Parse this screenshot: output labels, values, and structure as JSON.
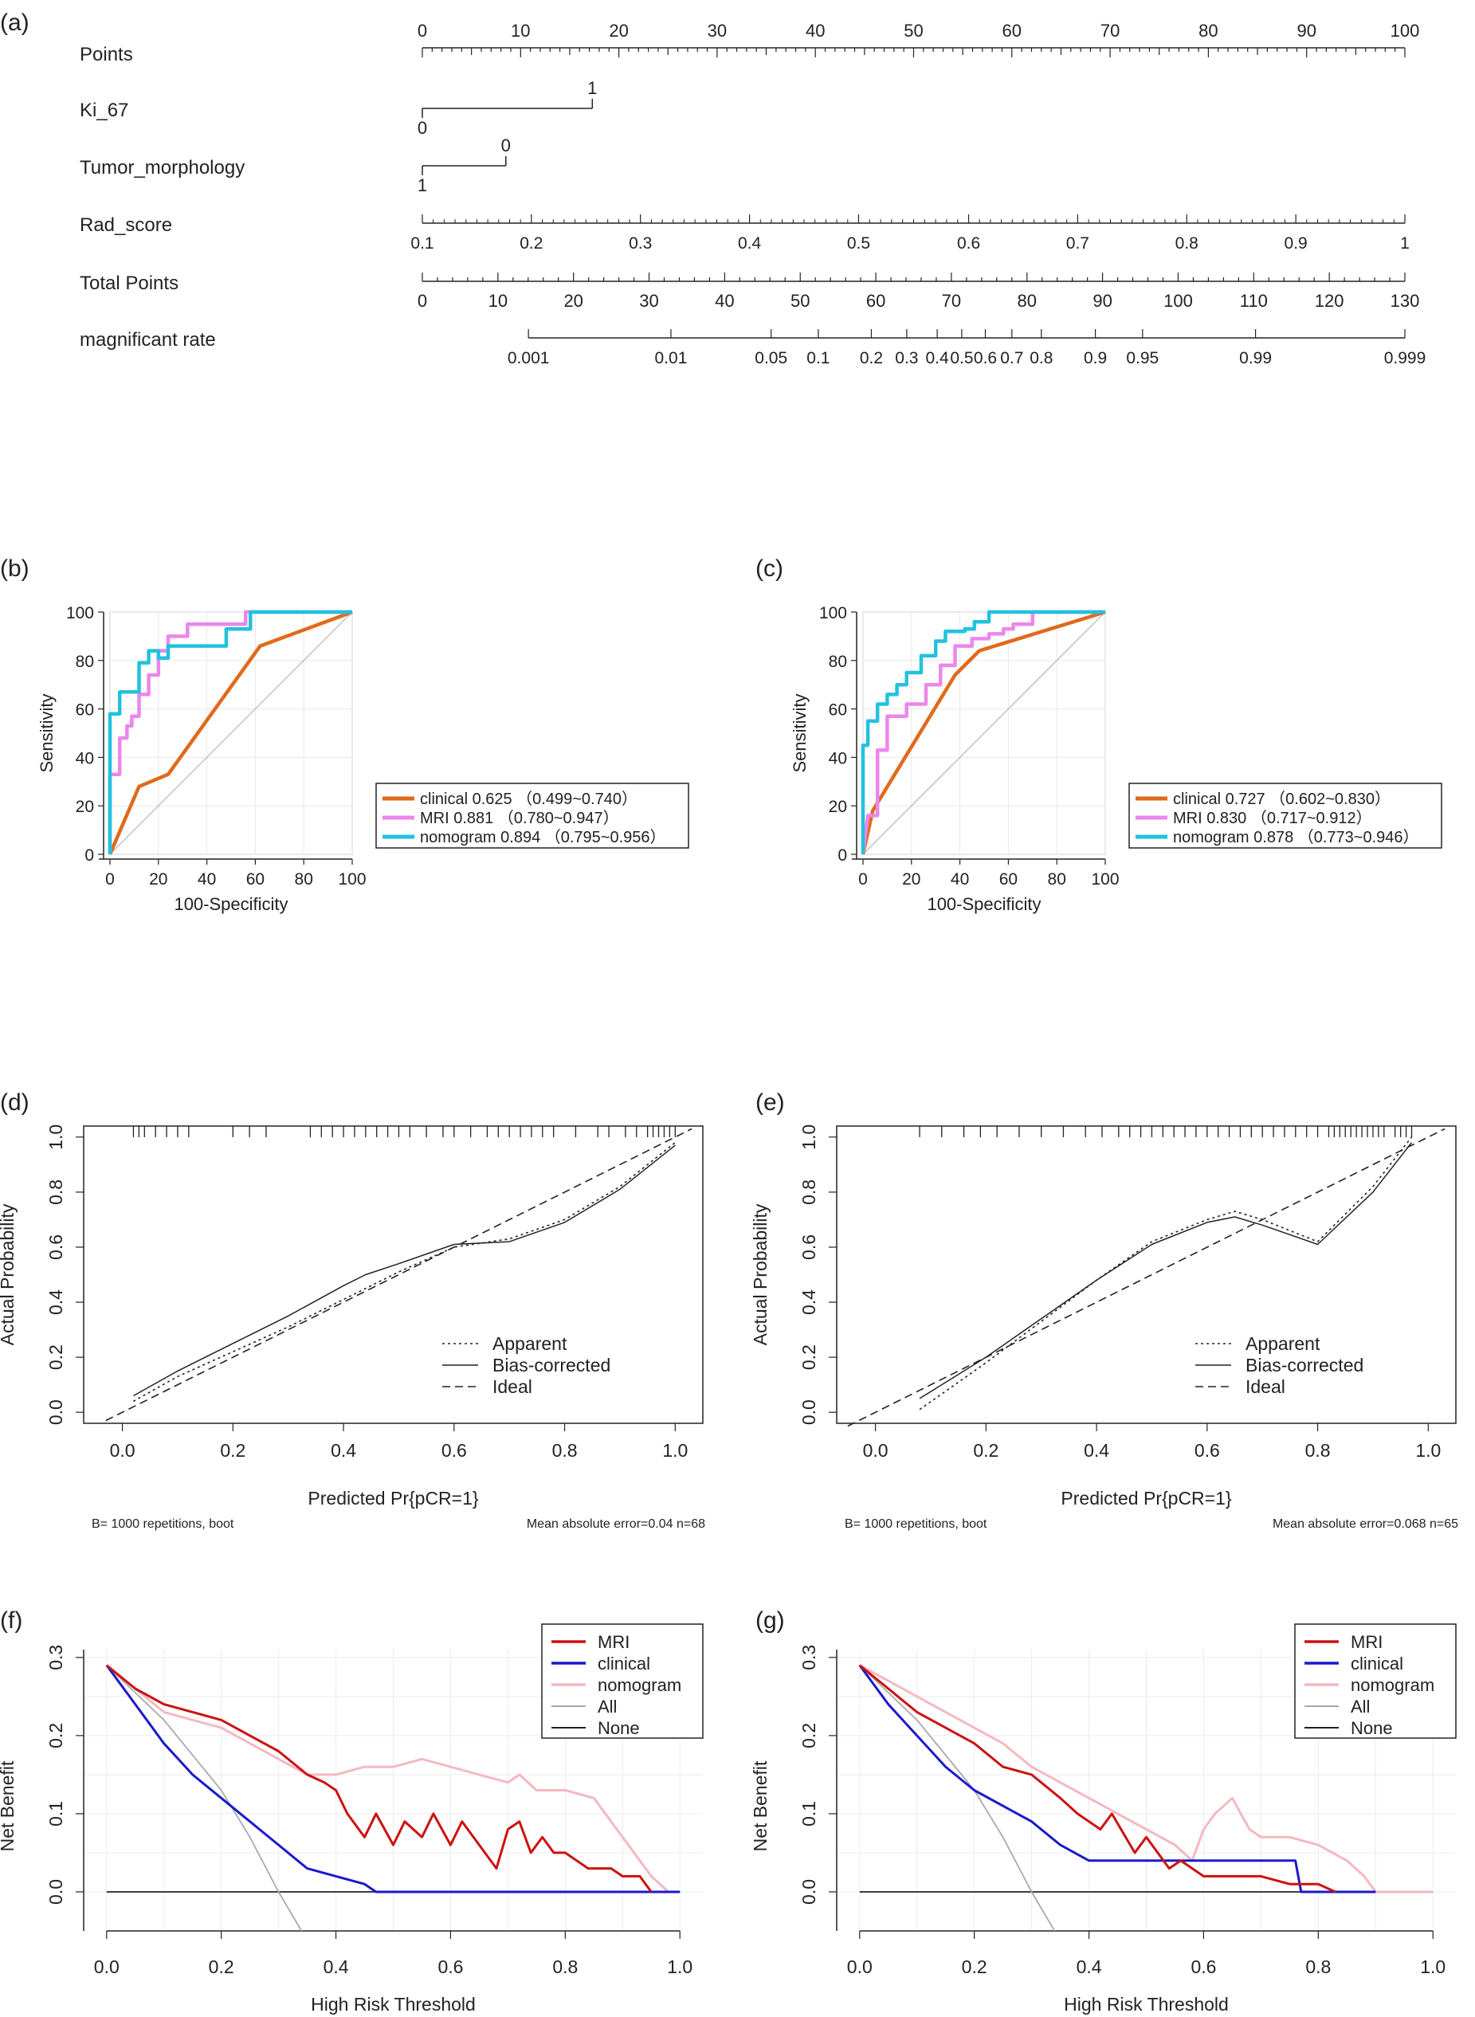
{
  "chart_data": [
    {
      "panel": "(a)",
      "type": "nomogram",
      "rows": [
        {
          "label": "Points",
          "ticks": [
            0,
            10,
            20,
            30,
            40,
            50,
            60,
            70,
            80,
            90,
            100
          ],
          "range": [
            0,
            100
          ],
          "minor_step": 1,
          "minor_mid": 5
        },
        {
          "label": "Ki_67",
          "segment": [
            0,
            17.3
          ],
          "ticks": [
            {
              "p": 0,
              "t": "0",
              "pos": "below"
            },
            {
              "p": 17.3,
              "t": "1",
              "pos": "above"
            }
          ]
        },
        {
          "label": "Tumor_morphology",
          "segment": [
            0,
            8.5
          ],
          "ticks": [
            {
              "p": 0,
              "t": "1",
              "pos": "below"
            },
            {
              "p": 8.5,
              "t": "0",
              "pos": "above"
            }
          ]
        },
        {
          "label": "Rad_score",
          "ticks": [
            "0.1",
            "0.2",
            "0.3",
            "0.4",
            "0.5",
            "0.6",
            "0.7",
            "0.8",
            "0.9",
            "1"
          ],
          "points_at": [
            0,
            11.1,
            22.2,
            33.3,
            44.4,
            55.6,
            66.7,
            77.8,
            88.9,
            100
          ]
        },
        {
          "label": "Total Points",
          "ticks": [
            0,
            10,
            20,
            30,
            40,
            50,
            60,
            70,
            80,
            90,
            100,
            110,
            120,
            130
          ],
          "range": [
            0,
            130
          ]
        },
        {
          "label": "magnificant rate",
          "ticks": [
            "0.001",
            "0.01",
            "0.05",
            "0.1",
            "0.2",
            "0.3",
            "0.4",
            "0.5",
            "0.6",
            "0.7",
            "0.8",
            "0.9",
            "0.95",
            "0.99",
            "0.999"
          ],
          "points_at": [
            10.8,
            25.3,
            35.5,
            40.3,
            45.7,
            49.3,
            52.4,
            54.9,
            57.3,
            60.0,
            63.0,
            68.5,
            73.3,
            84.8,
            100
          ]
        }
      ]
    },
    {
      "panel": "(b)",
      "type": "roc",
      "xlabel": "100-Specificity",
      "ylabel": "Sensitivity",
      "ticks": [
        0,
        20,
        40,
        60,
        80,
        100
      ],
      "series": [
        {
          "name": "clinical",
          "auc": "0.625",
          "ci": "（0.499~0.740）",
          "color": "#e06a1b",
          "x": [
            0,
            12,
            24,
            62,
            100
          ],
          "y": [
            0,
            28,
            33,
            86,
            100
          ]
        },
        {
          "name": "MRI",
          "auc": "0.881",
          "ci": "（0.780~0.947）",
          "color": "#ec86ec",
          "x": [
            0,
            0,
            4,
            4,
            7,
            7,
            9,
            9,
            12,
            12,
            16,
            16,
            20,
            20,
            24,
            24,
            32,
            32,
            56,
            56,
            58,
            58,
            100
          ],
          "y": [
            0,
            33,
            33,
            48,
            48,
            53,
            53,
            57,
            57,
            66,
            66,
            74,
            74,
            84,
            84,
            90,
            90,
            95,
            95,
            100,
            100,
            100,
            100
          ]
        },
        {
          "name": "nomogram",
          "auc": "0.894",
          "ci": "（0.795~0.956）",
          "color": "#22c1de",
          "x": [
            0,
            0,
            4,
            4,
            12,
            12,
            16,
            16,
            20,
            20,
            24,
            24,
            40,
            40,
            48,
            48,
            58,
            58,
            100
          ],
          "y": [
            0,
            58,
            58,
            67,
            67,
            79,
            79,
            84,
            84,
            81,
            81,
            86,
            86,
            86,
            86,
            93,
            93,
            100,
            100
          ]
        }
      ]
    },
    {
      "panel": "(c)",
      "type": "roc",
      "xlabel": "100-Specificity",
      "ylabel": "Sensitivity",
      "ticks": [
        0,
        20,
        40,
        60,
        80,
        100
      ],
      "series": [
        {
          "name": "clinical",
          "auc": "0.727",
          "ci": "（0.602~0.830）",
          "color": "#e06a1b",
          "x": [
            0,
            4,
            38,
            48,
            100
          ],
          "y": [
            0,
            18,
            74,
            84,
            100
          ]
        },
        {
          "name": "MRI",
          "auc": "0.830",
          "ci": "（0.717~0.912）",
          "color": "#ec86ec",
          "x": [
            0,
            2,
            6,
            6,
            10,
            10,
            18,
            18,
            26,
            26,
            32,
            32,
            38,
            38,
            45,
            45,
            52,
            52,
            58,
            58,
            62,
            62,
            70,
            70,
            100
          ],
          "y": [
            0,
            16,
            16,
            43,
            43,
            57,
            57,
            62,
            62,
            70,
            70,
            78,
            78,
            86,
            86,
            89,
            89,
            91,
            91,
            93,
            93,
            95,
            95,
            100,
            100
          ]
        },
        {
          "name": "nomogram",
          "auc": "0.878",
          "ci": "（0.773~0.946）",
          "color": "#22c1de",
          "x": [
            0,
            0,
            2,
            2,
            6,
            6,
            10,
            10,
            14,
            14,
            18,
            18,
            24,
            24,
            30,
            30,
            34,
            34,
            42,
            42,
            46,
            46,
            52,
            52,
            100
          ],
          "y": [
            0,
            45,
            45,
            55,
            55,
            62,
            62,
            66,
            66,
            70,
            70,
            75,
            75,
            82,
            82,
            88,
            88,
            92,
            92,
            93,
            93,
            96,
            96,
            100,
            100
          ]
        }
      ]
    },
    {
      "panel": "(d)",
      "type": "calibration",
      "xlabel": "Predicted Pr{pCR=1}",
      "ylabel": "Actual Probability",
      "ticks": [
        "0.0",
        "0.2",
        "0.4",
        "0.6",
        "0.8",
        "1.0"
      ],
      "legend": [
        "Apparent",
        "Bias-corrected",
        "Ideal"
      ],
      "footer_left": "B= 1000 repetitions, boot",
      "footer_right": "Mean absolute error=0.04 n=68",
      "apparent": {
        "x": [
          0.02,
          0.1,
          0.2,
          0.3,
          0.4,
          0.5,
          0.6,
          0.7,
          0.8,
          0.9,
          1.0
        ],
        "y": [
          0.04,
          0.13,
          0.22,
          0.31,
          0.41,
          0.51,
          0.6,
          0.63,
          0.7,
          0.82,
          0.98
        ]
      },
      "bias_corrected": {
        "x": [
          0.02,
          0.1,
          0.2,
          0.3,
          0.4,
          0.44,
          0.5,
          0.6,
          0.7,
          0.8,
          0.9,
          1.0
        ],
        "y": [
          0.06,
          0.15,
          0.25,
          0.35,
          0.46,
          0.5,
          0.54,
          0.61,
          0.62,
          0.69,
          0.81,
          0.97
        ]
      },
      "ideal": {
        "x": [
          -0.03,
          1.03
        ],
        "y": [
          -0.03,
          1.03
        ]
      },
      "rug": [
        0.02,
        0.03,
        0.04,
        0.06,
        0.08,
        0.1,
        0.12,
        0.2,
        0.23,
        0.26,
        0.34,
        0.36,
        0.38,
        0.4,
        0.42,
        0.44,
        0.46,
        0.48,
        0.5,
        0.52,
        0.55,
        0.58,
        0.6,
        0.63,
        0.66,
        0.68,
        0.7,
        0.72,
        0.74,
        0.76,
        0.78,
        0.82,
        0.86,
        0.88,
        0.91,
        0.93,
        0.95,
        0.96,
        0.97,
        0.98,
        0.99,
        1.0
      ]
    },
    {
      "panel": "(e)",
      "type": "calibration",
      "xlabel": "Predicted Pr{pCR=1}",
      "ylabel": "Actual Probability",
      "ticks": [
        "0.0",
        "0.2",
        "0.4",
        "0.6",
        "0.8",
        "1.0"
      ],
      "legend": [
        "Apparent",
        "Bias-corrected",
        "Ideal"
      ],
      "footer_left": "B= 1000 repetitions, boot",
      "footer_right": "Mean absolute error=0.068 n=65",
      "apparent": {
        "x": [
          0.08,
          0.2,
          0.3,
          0.4,
          0.5,
          0.6,
          0.65,
          0.7,
          0.8,
          0.9,
          0.97
        ],
        "y": [
          0.01,
          0.18,
          0.33,
          0.48,
          0.62,
          0.7,
          0.73,
          0.7,
          0.62,
          0.82,
          1.0
        ]
      },
      "bias_corrected": {
        "x": [
          0.08,
          0.2,
          0.3,
          0.4,
          0.5,
          0.6,
          0.65,
          0.7,
          0.8,
          0.9,
          0.97
        ],
        "y": [
          0.05,
          0.2,
          0.34,
          0.48,
          0.61,
          0.69,
          0.71,
          0.68,
          0.61,
          0.8,
          0.98
        ]
      },
      "ideal": {
        "x": [
          -0.05,
          1.03
        ],
        "y": [
          -0.05,
          1.03
        ]
      },
      "rug": [
        0.08,
        0.12,
        0.16,
        0.19,
        0.22,
        0.26,
        0.3,
        0.34,
        0.38,
        0.41,
        0.44,
        0.46,
        0.48,
        0.5,
        0.52,
        0.54,
        0.56,
        0.58,
        0.6,
        0.62,
        0.64,
        0.66,
        0.68,
        0.7,
        0.72,
        0.74,
        0.76,
        0.78,
        0.8,
        0.82,
        0.83,
        0.84,
        0.85,
        0.86,
        0.87,
        0.88,
        0.89,
        0.9,
        0.91,
        0.92,
        0.94,
        0.95,
        0.96,
        0.97
      ]
    },
    {
      "panel": "(f)",
      "type": "line",
      "title_type": "decision_curve",
      "xlabel": "High Risk Threshold",
      "ylabel": "Net Benefit",
      "xticks": [
        "0.0",
        "0.2",
        "0.4",
        "0.6",
        "0.8",
        "1.0"
      ],
      "yticks": [
        "0.0",
        "0.1",
        "0.2",
        "0.3"
      ],
      "series": [
        {
          "name": "MRI",
          "color": "#cc1111",
          "x": [
            0,
            0.05,
            0.1,
            0.15,
            0.2,
            0.25,
            0.3,
            0.35,
            0.38,
            0.4,
            0.42,
            0.45,
            0.47,
            0.5,
            0.52,
            0.55,
            0.57,
            0.6,
            0.62,
            0.65,
            0.68,
            0.7,
            0.72,
            0.74,
            0.76,
            0.78,
            0.8,
            0.84,
            0.88,
            0.9,
            0.93,
            0.95
          ],
          "y": [
            0.29,
            0.26,
            0.24,
            0.23,
            0.22,
            0.2,
            0.18,
            0.15,
            0.14,
            0.13,
            0.1,
            0.07,
            0.1,
            0.06,
            0.09,
            0.07,
            0.1,
            0.06,
            0.09,
            0.06,
            0.03,
            0.08,
            0.09,
            0.05,
            0.07,
            0.05,
            0.05,
            0.03,
            0.03,
            0.02,
            0.02,
            0.0
          ]
        },
        {
          "name": "clinical",
          "color": "#1a1acc",
          "x": [
            0,
            0.05,
            0.1,
            0.15,
            0.2,
            0.25,
            0.3,
            0.35,
            0.4,
            0.45,
            0.47,
            0.6,
            0.8,
            1.0
          ],
          "y": [
            0.29,
            0.24,
            0.19,
            0.15,
            0.12,
            0.09,
            0.06,
            0.03,
            0.02,
            0.01,
            0.0,
            0.0,
            0.0,
            0.0
          ]
        },
        {
          "name": "nomogram",
          "color": "#f5b8c0",
          "x": [
            0,
            0.05,
            0.1,
            0.15,
            0.2,
            0.25,
            0.3,
            0.35,
            0.4,
            0.45,
            0.5,
            0.55,
            0.6,
            0.65,
            0.7,
            0.72,
            0.75,
            0.8,
            0.85,
            0.88,
            0.92,
            0.95,
            0.98
          ],
          "y": [
            0.29,
            0.26,
            0.23,
            0.22,
            0.21,
            0.19,
            0.17,
            0.15,
            0.15,
            0.16,
            0.16,
            0.17,
            0.16,
            0.15,
            0.14,
            0.15,
            0.13,
            0.13,
            0.12,
            0.09,
            0.05,
            0.02,
            0.0
          ]
        },
        {
          "name": "All",
          "color": "#aaaaaa",
          "x": [
            0,
            0.1,
            0.2,
            0.25,
            0.3,
            0.34
          ],
          "y": [
            0.29,
            0.22,
            0.13,
            0.07,
            0.0,
            -0.05
          ]
        },
        {
          "name": "None",
          "color": "#222222",
          "x": [
            0,
            1.0
          ],
          "y": [
            0,
            0
          ]
        }
      ]
    },
    {
      "panel": "(g)",
      "type": "line",
      "title_type": "decision_curve",
      "xlabel": "High Risk Threshold",
      "ylabel": "Net Benefit",
      "xticks": [
        "0.0",
        "0.2",
        "0.4",
        "0.6",
        "0.8",
        "1.0"
      ],
      "yticks": [
        "0.0",
        "0.1",
        "0.2",
        "0.3"
      ],
      "series": [
        {
          "name": "MRI",
          "color": "#cc1111",
          "x": [
            0,
            0.05,
            0.1,
            0.15,
            0.2,
            0.25,
            0.3,
            0.35,
            0.38,
            0.42,
            0.44,
            0.48,
            0.5,
            0.54,
            0.56,
            0.6,
            0.65,
            0.7,
            0.75,
            0.8,
            0.83
          ],
          "y": [
            0.29,
            0.26,
            0.23,
            0.21,
            0.19,
            0.16,
            0.15,
            0.12,
            0.1,
            0.08,
            0.1,
            0.05,
            0.07,
            0.03,
            0.04,
            0.02,
            0.02,
            0.02,
            0.01,
            0.01,
            0.0
          ]
        },
        {
          "name": "clinical",
          "color": "#1a1acc",
          "x": [
            0,
            0.05,
            0.1,
            0.15,
            0.2,
            0.25,
            0.3,
            0.35,
            0.4,
            0.42,
            0.5,
            0.6,
            0.7,
            0.76,
            0.77,
            0.9
          ],
          "y": [
            0.29,
            0.24,
            0.2,
            0.16,
            0.13,
            0.11,
            0.09,
            0.06,
            0.04,
            0.04,
            0.04,
            0.04,
            0.04,
            0.04,
            0.0,
            0.0
          ]
        },
        {
          "name": "nomogram",
          "color": "#f5b8c0",
          "x": [
            0,
            0.05,
            0.1,
            0.15,
            0.2,
            0.25,
            0.3,
            0.35,
            0.4,
            0.45,
            0.5,
            0.55,
            0.58,
            0.6,
            0.62,
            0.65,
            0.68,
            0.7,
            0.75,
            0.8,
            0.85,
            0.88,
            0.9,
            0.95,
            1.0
          ],
          "y": [
            0.29,
            0.27,
            0.25,
            0.23,
            0.21,
            0.19,
            0.16,
            0.14,
            0.12,
            0.1,
            0.08,
            0.06,
            0.04,
            0.08,
            0.1,
            0.12,
            0.08,
            0.07,
            0.07,
            0.06,
            0.04,
            0.02,
            0.0,
            0.0,
            0.0
          ]
        },
        {
          "name": "All",
          "color": "#aaaaaa",
          "x": [
            0,
            0.1,
            0.2,
            0.25,
            0.3,
            0.34
          ],
          "y": [
            0.29,
            0.22,
            0.13,
            0.07,
            0.0,
            -0.05
          ]
        },
        {
          "name": "None",
          "color": "#222222",
          "x": [
            0,
            1.0
          ],
          "y": [
            0,
            0
          ]
        }
      ]
    }
  ]
}
